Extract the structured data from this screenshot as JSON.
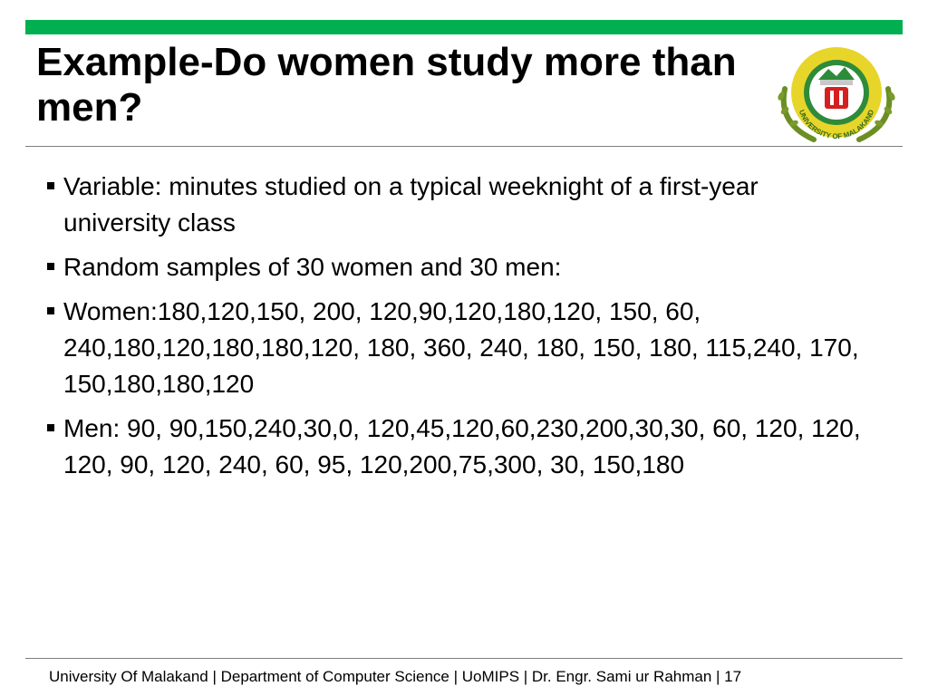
{
  "slide": {
    "title": "Example-Do women study more than men?",
    "accent_color": "#00b050",
    "logo_text": "UNIVERSITY OF MALAKAND",
    "bullets": [
      "Variable: minutes studied on a typical weeknight of a first-year university class",
      "Random samples of 30 women and 30 men:",
      "Women:180,120,150, 200, 120,90,120,180,120, 150, 60, 240,180,120,180,180,120,  180, 360, 240, 180, 150, 180, 115,240, 170, 150,180,180,120",
      "Men: 90, 90,150,240,30,0, 120,45,120,60,230,200,30,30, 60, 120, 120, 120, 90, 120, 240, 60,  95, 120,200,75,300, 30, 150,180"
    ]
  },
  "footer": {
    "text": "University Of Malakand | Department of Computer Science  |  UoMIPS |  Dr. Engr. Sami ur Rahman  |  17"
  }
}
